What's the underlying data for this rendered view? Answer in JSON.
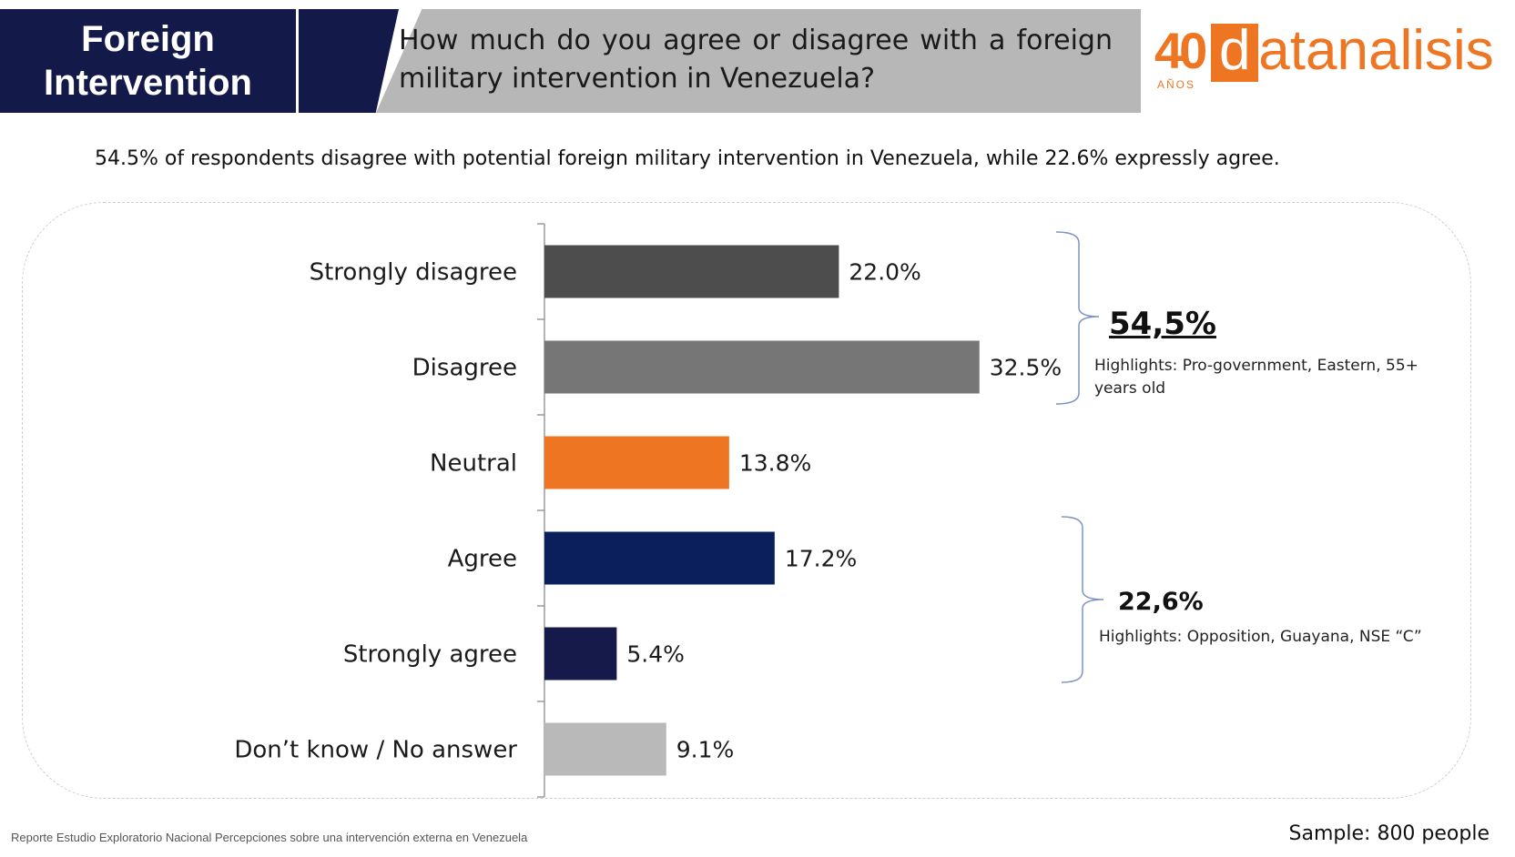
{
  "header": {
    "section_line1": "Foreign",
    "section_line2": "Intervention",
    "question": "How much do you agree or disagree with a foreign military intervention in Venezuela?",
    "logo_number": "40",
    "logo_years": "AÑOS",
    "logo_d": "d",
    "logo_word": "atanalisis"
  },
  "subtitle": "54.5% of respondents disagree with potential foreign military intervention in Venezuela, while 22.6% expressly agree.",
  "groups": [
    {
      "total": "54,5%",
      "highlights": "Highlights: Pro-government, Eastern, 55+ years old"
    },
    {
      "total": "22,6%",
      "highlights": "Highlights: Opposition, Guayana, NSE “C”"
    }
  ],
  "chart_data": {
    "type": "bar",
    "orientation": "horizontal",
    "categories": [
      "Strongly disagree",
      "Disagree",
      "Neutral",
      "Agree",
      "Strongly agree",
      "Don’t know / No answer"
    ],
    "values": [
      22.0,
      32.5,
      13.8,
      17.2,
      5.4,
      9.1
    ],
    "value_labels": [
      "22.0%",
      "32.5%",
      "13.8%",
      "17.2%",
      "5.4%",
      "9.1%"
    ],
    "colors": [
      "#4d4d4d",
      "#767676",
      "#ee7623",
      "#0b1f5c",
      "#161a4a",
      "#b9b9b9"
    ],
    "xlim": [
      0,
      35
    ],
    "grid": false
  },
  "footer": {
    "source": "Reporte Estudio Exploratorio Nacional Percepciones sobre una intervención externa en Venezuela",
    "sample": "Sample: 800 people"
  }
}
